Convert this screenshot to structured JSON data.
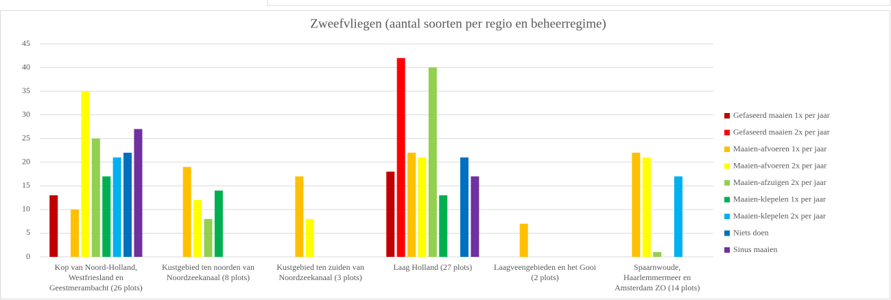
{
  "chart_data": {
    "type": "bar",
    "title": "Zweefvliegen (aantal soorten per regio en beheerregime)",
    "categories": [
      "Kop van Noord-Holland, Westfriesland en Geestmerambacht (26 plots)",
      "Kustgebied ten noorden van Noordzeekanaal (8 plots)",
      "Kustgebied ten zuiden van Noordzeekanaal (3 plots)",
      "Laag Holland (27 plots)",
      "Laagveengebieden en het Gooi (2 plots)",
      "Spaarnwoude, Haarlemmermeer en Amsterdam ZO (14 plots)"
    ],
    "series": [
      {
        "name": "Gefaseerd maaien 1x per jaar",
        "color": "#c00000",
        "values": [
          13,
          null,
          null,
          18,
          null,
          null
        ]
      },
      {
        "name": "Gefaseerd maaien 2x per jaar",
        "color": "#ff0000",
        "values": [
          null,
          null,
          null,
          42,
          null,
          null
        ]
      },
      {
        "name": "Maaien-afvoeren 1x per jaar",
        "color": "#ffc000",
        "values": [
          10,
          19,
          17,
          22,
          7,
          22
        ]
      },
      {
        "name": "Maaien-afvoeren 2x per jaar",
        "color": "#ffff00",
        "values": [
          35,
          12,
          8,
          21,
          null,
          21
        ]
      },
      {
        "name": "Maaien-afzuigen 2x per jaar",
        "color": "#92d050",
        "values": [
          25,
          8,
          null,
          40,
          null,
          1
        ]
      },
      {
        "name": "Maaien-klepelen 1x per jaar",
        "color": "#00b050",
        "values": [
          17,
          14,
          null,
          13,
          null,
          null
        ]
      },
      {
        "name": "Maaien-klepelen 2x per jaar",
        "color": "#00b0f0",
        "values": [
          21,
          null,
          null,
          null,
          null,
          17
        ]
      },
      {
        "name": "Niets doen",
        "color": "#0070c0",
        "values": [
          22,
          null,
          null,
          21,
          null,
          null
        ]
      },
      {
        "name": "Sinus maaien",
        "color": "#7030a0",
        "values": [
          27,
          null,
          null,
          17,
          null,
          null
        ]
      }
    ],
    "ylim": [
      0,
      45
    ],
    "yticks": [
      0,
      5,
      10,
      15,
      20,
      25,
      30,
      35,
      40,
      45
    ],
    "grid": true,
    "legend": "right"
  }
}
